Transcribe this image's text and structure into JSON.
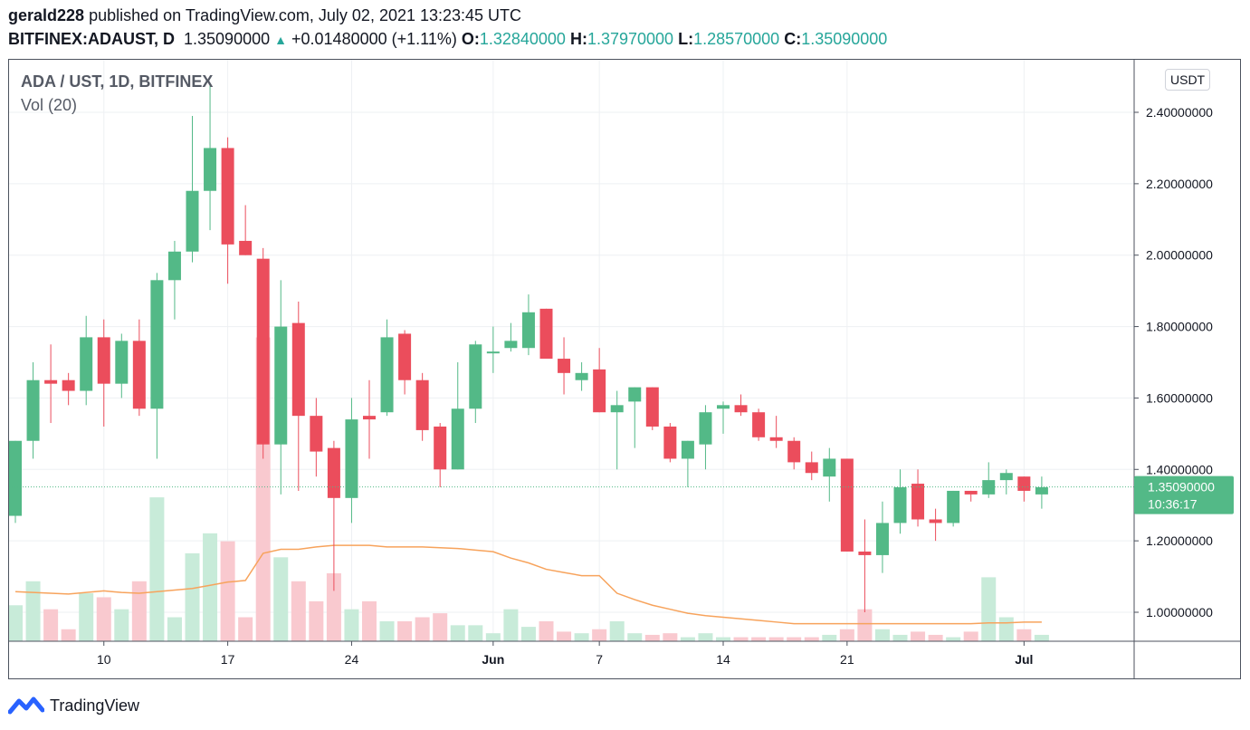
{
  "header": {
    "author": "gerald228",
    "published": "published on TradingView.com, July 02, 2021 13:23:45 UTC",
    "symbol": "BITFINEX:ADAUST, D",
    "last": "1.35090000",
    "change": "+0.01480000 (+1.11%)",
    "o_label": "O:",
    "o_value": "1.32840000",
    "h_label": "H:",
    "h_value": "1.37970000",
    "l_label": "L:",
    "l_value": "1.28570000",
    "c_label": "C:",
    "c_value": "1.35090000"
  },
  "legend": {
    "title": "ADA / UST, 1D, BITFINEX",
    "indicator": "Vol (20)"
  },
  "price_scale": {
    "unit": "USDT",
    "last_price": "1.35090000",
    "countdown": "10:36:17"
  },
  "footer": {
    "brand": "TradingView"
  },
  "colors": {
    "up": "#53b987",
    "down": "#eb4d5c",
    "up_vol": "#c8ebd9",
    "down_vol": "#f9c9cf",
    "ma": "#f7a35c",
    "grid": "#eef0f3"
  },
  "chart_data": {
    "type": "candlestick",
    "title": "ADA / UST, 1D, BITFINEX",
    "y_ticks": [
      "1.00000000",
      "1.20000000",
      "1.40000000",
      "1.60000000",
      "1.80000000",
      "2.00000000",
      "2.20000000",
      "2.40000000"
    ],
    "ylim": [
      0.92,
      2.55
    ],
    "x_ticks": [
      {
        "label": "10",
        "i": 5
      },
      {
        "label": "17",
        "i": 12
      },
      {
        "label": "24",
        "i": 19
      },
      {
        "label": "Jun",
        "i": 27
      },
      {
        "label": "7",
        "i": 33
      },
      {
        "label": "14",
        "i": 40
      },
      {
        "label": "21",
        "i": 47
      },
      {
        "label": "Jul",
        "i": 57
      }
    ],
    "candles": [
      {
        "o": 1.27,
        "h": 1.48,
        "l": 1.25,
        "c": 1.48,
        "v": 0.045
      },
      {
        "o": 1.48,
        "h": 1.7,
        "l": 1.43,
        "c": 1.65,
        "v": 0.075
      },
      {
        "o": 1.65,
        "h": 1.75,
        "l": 1.53,
        "c": 1.64,
        "v": 0.04
      },
      {
        "o": 1.65,
        "h": 1.67,
        "l": 1.58,
        "c": 1.62,
        "v": 0.015
      },
      {
        "o": 1.62,
        "h": 1.83,
        "l": 1.58,
        "c": 1.77,
        "v": 0.06
      },
      {
        "o": 1.77,
        "h": 1.82,
        "l": 1.52,
        "c": 1.64,
        "v": 0.055
      },
      {
        "o": 1.64,
        "h": 1.78,
        "l": 1.6,
        "c": 1.76,
        "v": 0.04
      },
      {
        "o": 1.76,
        "h": 1.82,
        "l": 1.55,
        "c": 1.57,
        "v": 0.075
      },
      {
        "o": 1.57,
        "h": 1.95,
        "l": 1.43,
        "c": 1.93,
        "v": 0.18
      },
      {
        "o": 1.93,
        "h": 2.04,
        "l": 1.82,
        "c": 2.01,
        "v": 0.03
      },
      {
        "o": 2.01,
        "h": 2.39,
        "l": 1.98,
        "c": 2.18,
        "v": 0.11
      },
      {
        "o": 2.18,
        "h": 2.48,
        "l": 2.07,
        "c": 2.3,
        "v": 0.135
      },
      {
        "o": 2.3,
        "h": 2.33,
        "l": 1.92,
        "c": 2.03,
        "v": 0.125
      },
      {
        "o": 2.04,
        "h": 2.14,
        "l": 2.0,
        "c": 2.0,
        "v": 0.03
      },
      {
        "o": 1.99,
        "h": 2.02,
        "l": 1.43,
        "c": 1.47,
        "v": 0.38
      },
      {
        "o": 1.47,
        "h": 1.93,
        "l": 1.33,
        "c": 1.8,
        "v": 0.105
      },
      {
        "o": 1.81,
        "h": 1.87,
        "l": 1.34,
        "c": 1.55,
        "v": 0.075
      },
      {
        "o": 1.55,
        "h": 1.6,
        "l": 1.38,
        "c": 1.45,
        "v": 0.05
      },
      {
        "o": 1.46,
        "h": 1.48,
        "l": 1.06,
        "c": 1.32,
        "v": 0.085
      },
      {
        "o": 1.32,
        "h": 1.6,
        "l": 1.25,
        "c": 1.54,
        "v": 0.04
      },
      {
        "o": 1.55,
        "h": 1.65,
        "l": 1.43,
        "c": 1.54,
        "v": 0.05
      },
      {
        "o": 1.56,
        "h": 1.82,
        "l": 1.55,
        "c": 1.77,
        "v": 0.025
      },
      {
        "o": 1.78,
        "h": 1.79,
        "l": 1.61,
        "c": 1.65,
        "v": 0.025
      },
      {
        "o": 1.65,
        "h": 1.67,
        "l": 1.48,
        "c": 1.51,
        "v": 0.03
      },
      {
        "o": 1.52,
        "h": 1.53,
        "l": 1.35,
        "c": 1.4,
        "v": 0.035
      },
      {
        "o": 1.4,
        "h": 1.7,
        "l": 1.4,
        "c": 1.57,
        "v": 0.02
      },
      {
        "o": 1.57,
        "h": 1.76,
        "l": 1.53,
        "c": 1.75,
        "v": 0.02
      },
      {
        "o": 1.73,
        "h": 1.8,
        "l": 1.67,
        "c": 1.73,
        "v": 0.01
      },
      {
        "o": 1.74,
        "h": 1.81,
        "l": 1.73,
        "c": 1.76,
        "v": 0.04
      },
      {
        "o": 1.74,
        "h": 1.89,
        "l": 1.72,
        "c": 1.84,
        "v": 0.018
      },
      {
        "o": 1.85,
        "h": 1.85,
        "l": 1.71,
        "c": 1.71,
        "v": 0.025
      },
      {
        "o": 1.71,
        "h": 1.77,
        "l": 1.61,
        "c": 1.67,
        "v": 0.012
      },
      {
        "o": 1.65,
        "h": 1.7,
        "l": 1.62,
        "c": 1.67,
        "v": 0.01
      },
      {
        "o": 1.68,
        "h": 1.74,
        "l": 1.56,
        "c": 1.56,
        "v": 0.015
      },
      {
        "o": 1.56,
        "h": 1.62,
        "l": 1.4,
        "c": 1.58,
        "v": 0.025
      },
      {
        "o": 1.59,
        "h": 1.63,
        "l": 1.46,
        "c": 1.63,
        "v": 0.01
      },
      {
        "o": 1.63,
        "h": 1.63,
        "l": 1.51,
        "c": 1.52,
        "v": 0.008
      },
      {
        "o": 1.52,
        "h": 1.53,
        "l": 1.42,
        "c": 1.43,
        "v": 0.01
      },
      {
        "o": 1.43,
        "h": 1.48,
        "l": 1.35,
        "c": 1.48,
        "v": 0.005
      },
      {
        "o": 1.47,
        "h": 1.58,
        "l": 1.4,
        "c": 1.56,
        "v": 0.01
      },
      {
        "o": 1.57,
        "h": 1.59,
        "l": 1.5,
        "c": 1.58,
        "v": 0.005
      },
      {
        "o": 1.58,
        "h": 1.61,
        "l": 1.55,
        "c": 1.56,
        "v": 0.005
      },
      {
        "o": 1.56,
        "h": 1.57,
        "l": 1.48,
        "c": 1.49,
        "v": 0.005
      },
      {
        "o": 1.49,
        "h": 1.55,
        "l": 1.46,
        "c": 1.48,
        "v": 0.005
      },
      {
        "o": 1.48,
        "h": 1.49,
        "l": 1.4,
        "c": 1.42,
        "v": 0.005
      },
      {
        "o": 1.42,
        "h": 1.45,
        "l": 1.37,
        "c": 1.39,
        "v": 0.005
      },
      {
        "o": 1.38,
        "h": 1.46,
        "l": 1.31,
        "c": 1.43,
        "v": 0.008
      },
      {
        "o": 1.43,
        "h": 1.43,
        "l": 1.17,
        "c": 1.17,
        "v": 0.015
      },
      {
        "o": 1.17,
        "h": 1.26,
        "l": 1.0,
        "c": 1.16,
        "v": 0.04
      },
      {
        "o": 1.16,
        "h": 1.31,
        "l": 1.11,
        "c": 1.25,
        "v": 0.015
      },
      {
        "o": 1.25,
        "h": 1.4,
        "l": 1.22,
        "c": 1.35,
        "v": 0.008
      },
      {
        "o": 1.36,
        "h": 1.4,
        "l": 1.24,
        "c": 1.26,
        "v": 0.012
      },
      {
        "o": 1.26,
        "h": 1.29,
        "l": 1.2,
        "c": 1.25,
        "v": 0.008
      },
      {
        "o": 1.25,
        "h": 1.34,
        "l": 1.24,
        "c": 1.34,
        "v": 0.005
      },
      {
        "o": 1.34,
        "h": 1.34,
        "l": 1.31,
        "c": 1.33,
        "v": 0.012
      },
      {
        "o": 1.33,
        "h": 1.42,
        "l": 1.32,
        "c": 1.37,
        "v": 0.08
      },
      {
        "o": 1.37,
        "h": 1.4,
        "l": 1.33,
        "c": 1.39,
        "v": 0.03
      },
      {
        "o": 1.38,
        "h": 1.38,
        "l": 1.31,
        "c": 1.34,
        "v": 0.015
      },
      {
        "o": 1.33,
        "h": 1.38,
        "l": 1.29,
        "c": 1.35,
        "v": 0.008
      }
    ],
    "vol_ma": [
      0.062,
      0.061,
      0.06,
      0.059,
      0.061,
      0.063,
      0.061,
      0.06,
      0.062,
      0.064,
      0.066,
      0.07,
      0.074,
      0.076,
      0.11,
      0.115,
      0.115,
      0.118,
      0.12,
      0.12,
      0.12,
      0.118,
      0.118,
      0.118,
      0.117,
      0.116,
      0.114,
      0.112,
      0.104,
      0.098,
      0.09,
      0.086,
      0.082,
      0.082,
      0.06,
      0.052,
      0.045,
      0.04,
      0.035,
      0.032,
      0.03,
      0.028,
      0.026,
      0.024,
      0.022,
      0.022,
      0.022,
      0.022,
      0.022,
      0.022,
      0.022,
      0.022,
      0.022,
      0.022,
      0.022,
      0.023,
      0.023,
      0.024,
      0.024
    ],
    "vol_max": 0.4
  }
}
